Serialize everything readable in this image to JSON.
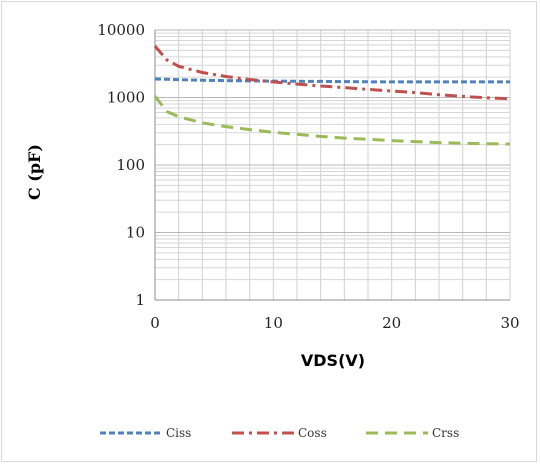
{
  "chart_data": {
    "type": "line",
    "xlabel": "VDS(V)",
    "ylabel": "C (pF)",
    "xlim": [
      0,
      30
    ],
    "ylim": [
      1,
      10000
    ],
    "yscale": "log",
    "x_ticks": [
      "0",
      "10",
      "20",
      "30"
    ],
    "y_ticks": [
      "1",
      "10",
      "100",
      "1000",
      "10000"
    ],
    "grid": true,
    "legend_position": "bottom",
    "x": [
      0,
      1,
      2,
      4,
      6,
      8,
      10,
      12,
      14,
      16,
      18,
      20,
      22,
      24,
      26,
      28,
      30
    ],
    "series": [
      {
        "name": "Ciss",
        "color": "#4f81bd",
        "dash": "dashed",
        "values": [
          1880,
          1860,
          1840,
          1800,
          1780,
          1760,
          1750,
          1740,
          1730,
          1720,
          1710,
          1700,
          1700,
          1700,
          1700,
          1700,
          1700
        ]
      },
      {
        "name": "Coss",
        "color": "#c0504d",
        "dash": "dash-dot",
        "values": [
          5800,
          3600,
          2900,
          2350,
          2050,
          1850,
          1700,
          1580,
          1480,
          1400,
          1320,
          1250,
          1180,
          1100,
          1040,
          990,
          960
        ]
      },
      {
        "name": "Crss",
        "color": "#9bbb59",
        "dash": "long-dash",
        "values": [
          1050,
          620,
          520,
          420,
          370,
          335,
          305,
          285,
          265,
          250,
          240,
          230,
          222,
          215,
          210,
          207,
          205
        ]
      }
    ]
  }
}
